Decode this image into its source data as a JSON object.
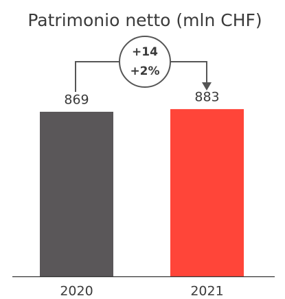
{
  "chart_data": {
    "type": "bar",
    "title": "Patrimonio netto (mln CHF)",
    "categories": [
      "2020",
      "2021"
    ],
    "values": [
      869,
      883
    ],
    "colors": [
      "#5a5759",
      "#ff4539"
    ],
    "annotations": [
      "+14",
      "+2%"
    ]
  }
}
